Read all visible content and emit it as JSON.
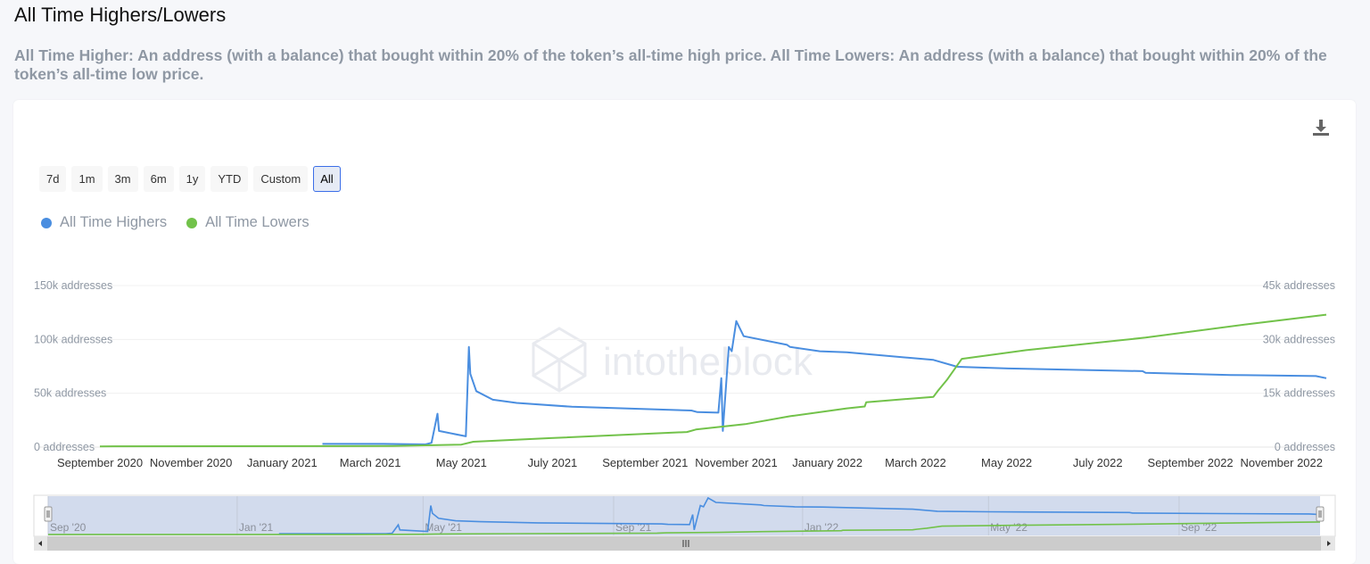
{
  "page": {
    "title": "All Time Highers/Lowers",
    "description": "All Time Higher: An address (with a balance) that bought within 20% of the token’s all-time high price. All Time Lowers: An address (with a balance) that bought within 20% of the token’s all-time low price."
  },
  "toolbar": {
    "download_icon": "download-icon"
  },
  "ranges": [
    {
      "label": "7d",
      "active": false
    },
    {
      "label": "1m",
      "active": false
    },
    {
      "label": "3m",
      "active": false
    },
    {
      "label": "6m",
      "active": false
    },
    {
      "label": "1y",
      "active": false
    },
    {
      "label": "YTD",
      "active": false
    },
    {
      "label": "Custom",
      "active": false
    },
    {
      "label": "All",
      "active": true
    }
  ],
  "watermark": "intotheblock",
  "chart_data": {
    "type": "line",
    "title": "All Time Highers/Lowers",
    "x_range": [
      "2020-09-01",
      "2022-12-01"
    ],
    "x_ticks": [
      "September 2020",
      "November 2020",
      "January 2021",
      "March 2021",
      "May 2021",
      "July 2021",
      "September 2021",
      "November 2021",
      "January 2022",
      "March 2022",
      "May 2022",
      "July 2022",
      "September 2022",
      "November 2022"
    ],
    "x_tick_dates": [
      "2020-09-01",
      "2020-11-01",
      "2021-01-01",
      "2021-03-01",
      "2021-05-01",
      "2021-07-01",
      "2021-09-01",
      "2021-11-01",
      "2022-01-01",
      "2022-03-01",
      "2022-05-01",
      "2022-07-01",
      "2022-09-01",
      "2022-11-01"
    ],
    "y_left": {
      "ticks": [
        "0 addresses",
        "50k addresses",
        "100k addresses",
        "150k addresses"
      ],
      "values": [
        0,
        50000,
        100000,
        150000
      ],
      "range": [
        0,
        150000
      ]
    },
    "y_right": {
      "ticks": [
        "0 addresses",
        "15k addresses",
        "30k addresses",
        "45k addresses"
      ],
      "values": [
        0,
        15000,
        30000,
        45000
      ],
      "range": [
        0,
        45000
      ]
    },
    "grid": true,
    "legend": {
      "placement": "top-left",
      "entries": [
        "All Time Highers",
        "All Time Lowers"
      ]
    },
    "series": [
      {
        "name": "All Time Highers",
        "color": "#4a8ee0",
        "axis": "left",
        "points": [
          [
            "2021-01-28",
            3000
          ],
          [
            "2021-03-10",
            3000
          ],
          [
            "2021-04-07",
            2500
          ],
          [
            "2021-04-11",
            4000
          ],
          [
            "2021-04-15",
            31000
          ],
          [
            "2021-04-16",
            15000
          ],
          [
            "2021-05-04",
            10000
          ],
          [
            "2021-05-06",
            93000
          ],
          [
            "2021-05-07",
            68000
          ],
          [
            "2021-05-11",
            52000
          ],
          [
            "2021-05-22",
            44000
          ],
          [
            "2021-06-07",
            41000
          ],
          [
            "2021-07-14",
            37500
          ],
          [
            "2021-10-02",
            34000
          ],
          [
            "2021-10-06",
            32500
          ],
          [
            "2021-10-20",
            32000
          ],
          [
            "2021-10-22",
            64000
          ],
          [
            "2021-10-23",
            15000
          ],
          [
            "2021-10-27",
            93000
          ],
          [
            "2021-10-29",
            89000
          ],
          [
            "2021-11-01",
            117000
          ],
          [
            "2021-11-06",
            103000
          ],
          [
            "2021-12-05",
            95000
          ],
          [
            "2021-12-07",
            93000
          ],
          [
            "2021-12-27",
            89000
          ],
          [
            "2022-01-14",
            88000
          ],
          [
            "2022-03-13",
            81000
          ],
          [
            "2022-03-29",
            74600
          ],
          [
            "2022-05-02",
            73000
          ],
          [
            "2022-07-31",
            70500
          ],
          [
            "2022-08-02",
            69000
          ],
          [
            "2022-09-28",
            67000
          ],
          [
            "2022-11-24",
            66000
          ],
          [
            "2022-12-01",
            64000
          ]
        ]
      },
      {
        "name": "All Time Lowers",
        "color": "#72c24a",
        "axis": "right",
        "points": [
          [
            "2020-09-01",
            200
          ],
          [
            "2021-03-16",
            300
          ],
          [
            "2021-05-01",
            700
          ],
          [
            "2021-05-09",
            1500
          ],
          [
            "2021-06-30",
            2500
          ],
          [
            "2021-09-29",
            4200
          ],
          [
            "2021-10-05",
            4900
          ],
          [
            "2021-11-07",
            6400
          ],
          [
            "2021-12-07",
            8600
          ],
          [
            "2022-01-14",
            10800
          ],
          [
            "2022-01-26",
            11300
          ],
          [
            "2022-01-27",
            12500
          ],
          [
            "2022-03-13",
            14000
          ],
          [
            "2022-03-16",
            15700
          ],
          [
            "2022-03-22",
            18700
          ],
          [
            "2022-04-01",
            24600
          ],
          [
            "2022-05-14",
            27000
          ],
          [
            "2022-08-02",
            30500
          ],
          [
            "2022-10-09",
            34200
          ],
          [
            "2022-12-01",
            36900
          ]
        ]
      }
    ],
    "navigator": {
      "ticks": [
        "Sep '20",
        "Jan '21",
        "May '21",
        "Sep '21",
        "Jan '22",
        "May '22",
        "Sep '22"
      ],
      "tick_dates": [
        "2020-09-01",
        "2021-01-01",
        "2021-05-01",
        "2021-09-01",
        "2022-01-01",
        "2022-05-01",
        "2022-09-01"
      ],
      "selection": [
        "2020-09-01",
        "2022-12-01"
      ]
    }
  }
}
